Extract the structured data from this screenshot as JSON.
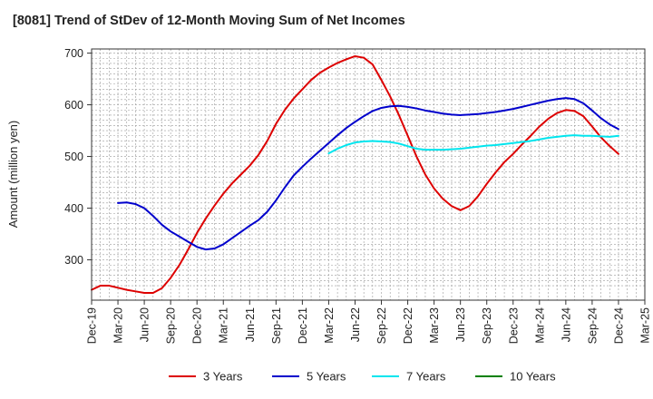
{
  "chart_data": {
    "type": "line",
    "title": "[8081]  Trend of StDev of 12-Month Moving Sum of Net Incomes",
    "xlabel": "",
    "ylabel": "Amount (million yen)",
    "x_ticks": [
      "Dec-19",
      "Mar-20",
      "Jun-20",
      "Sep-20",
      "Dec-20",
      "Mar-21",
      "Jun-21",
      "Sep-21",
      "Dec-21",
      "Mar-22",
      "Jun-22",
      "Sep-22",
      "Dec-22",
      "Mar-23",
      "Jun-23",
      "Sep-23",
      "Dec-23",
      "Mar-24",
      "Jun-24",
      "Sep-24",
      "Dec-24",
      "Mar-25"
    ],
    "y_ticks": [
      300,
      400,
      500,
      600,
      700
    ],
    "ylim": [
      222,
      708
    ],
    "grid": true,
    "legend_position": "bottom",
    "series": [
      {
        "name": "3 Years",
        "color": "#dd0000",
        "x": [
          "2019-12",
          "2020-01",
          "2020-02",
          "2020-03",
          "2020-04",
          "2020-05",
          "2020-06",
          "2020-07",
          "2020-08",
          "2020-09",
          "2020-10",
          "2020-11",
          "2020-12",
          "2021-01",
          "2021-02",
          "2021-03",
          "2021-04",
          "2021-05",
          "2021-06",
          "2021-07",
          "2021-08",
          "2021-09",
          "2021-10",
          "2021-11",
          "2021-12",
          "2022-01",
          "2022-02",
          "2022-03",
          "2022-04",
          "2022-05",
          "2022-06",
          "2022-07",
          "2022-08",
          "2022-09",
          "2022-10",
          "2022-11",
          "2022-12",
          "2023-01",
          "2023-02",
          "2023-03",
          "2023-04",
          "2023-05",
          "2023-06",
          "2023-07",
          "2023-08",
          "2023-09",
          "2023-10",
          "2023-11",
          "2023-12",
          "2024-01",
          "2024-02",
          "2024-03",
          "2024-04",
          "2024-05",
          "2024-06",
          "2024-07",
          "2024-08",
          "2024-09",
          "2024-10",
          "2024-11",
          "2024-12"
        ],
        "values": [
          242,
          250,
          250,
          246,
          242,
          239,
          236,
          236,
          245,
          265,
          290,
          320,
          352,
          380,
          405,
          428,
          448,
          465,
          482,
          503,
          530,
          563,
          590,
          612,
          630,
          648,
          662,
          672,
          681,
          688,
          694,
          691,
          678,
          648,
          616,
          580,
          540,
          500,
          465,
          438,
          418,
          404,
          396,
          404,
          423,
          447,
          469,
          489,
          505,
          523,
          540,
          558,
          573,
          584,
          590,
          588,
          578,
          558,
          537,
          520,
          505
        ]
      },
      {
        "name": "5 Years",
        "color": "#0000cc",
        "x": [
          "2020-03",
          "2020-04",
          "2020-05",
          "2020-06",
          "2020-07",
          "2020-08",
          "2020-09",
          "2020-10",
          "2020-11",
          "2020-12",
          "2021-01",
          "2021-02",
          "2021-03",
          "2021-04",
          "2021-05",
          "2021-06",
          "2021-07",
          "2021-08",
          "2021-09",
          "2021-10",
          "2021-11",
          "2021-12",
          "2022-01",
          "2022-02",
          "2022-03",
          "2022-04",
          "2022-05",
          "2022-06",
          "2022-07",
          "2022-08",
          "2022-09",
          "2022-10",
          "2022-11",
          "2022-12",
          "2023-01",
          "2023-02",
          "2023-03",
          "2023-04",
          "2023-05",
          "2023-06",
          "2023-07",
          "2023-08",
          "2023-09",
          "2023-10",
          "2023-11",
          "2023-12",
          "2024-01",
          "2024-02",
          "2024-03",
          "2024-04",
          "2024-05",
          "2024-06",
          "2024-07",
          "2024-08",
          "2024-09",
          "2024-10",
          "2024-11",
          "2024-12"
        ],
        "values": [
          410,
          411,
          408,
          400,
          385,
          368,
          355,
          345,
          335,
          325,
          320,
          322,
          330,
          342,
          354,
          366,
          377,
          393,
          415,
          440,
          463,
          480,
          496,
          511,
          526,
          541,
          555,
          567,
          578,
          588,
          594,
          597,
          598,
          596,
          593,
          589,
          586,
          583,
          581,
          580,
          581,
          582,
          584,
          586,
          589,
          592,
          596,
          600,
          604,
          608,
          611,
          613,
          611,
          603,
          589,
          574,
          562,
          553
        ]
      },
      {
        "name": "7 Years",
        "color": "#00e5ee",
        "x": [
          "2022-03",
          "2022-04",
          "2022-05",
          "2022-06",
          "2022-07",
          "2022-08",
          "2022-09",
          "2022-10",
          "2022-11",
          "2022-12",
          "2023-01",
          "2023-02",
          "2023-03",
          "2023-04",
          "2023-05",
          "2023-06",
          "2023-07",
          "2023-08",
          "2023-09",
          "2023-10",
          "2023-11",
          "2023-12",
          "2024-01",
          "2024-02",
          "2024-03",
          "2024-04",
          "2024-05",
          "2024-06",
          "2024-07",
          "2024-08",
          "2024-09",
          "2024-10",
          "2024-11",
          "2024-12"
        ],
        "values": [
          506,
          515,
          522,
          527,
          529,
          530,
          529,
          528,
          525,
          520,
          515,
          513,
          513,
          513,
          514,
          515,
          517,
          519,
          521,
          522,
          524,
          526,
          528,
          530,
          533,
          536,
          538,
          540,
          541,
          540,
          540,
          539,
          538,
          540
        ]
      },
      {
        "name": "10 Years",
        "color": "#008000",
        "x": [],
        "values": []
      }
    ]
  }
}
